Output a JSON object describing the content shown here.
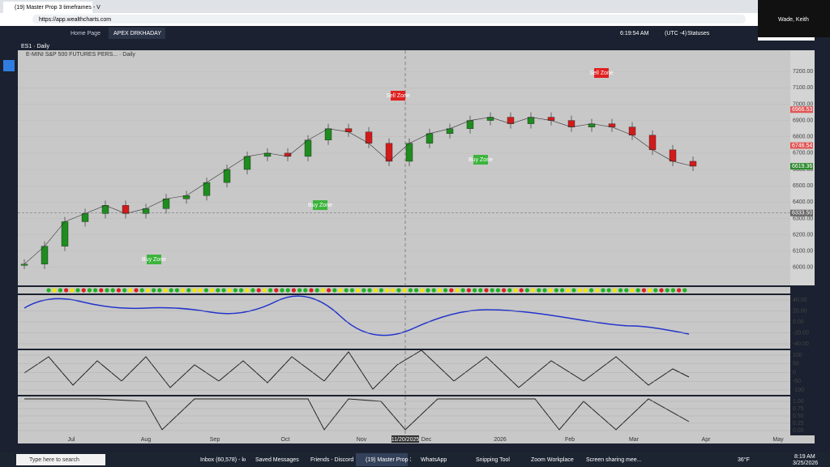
{
  "browser": {
    "tab_title": "(19) Master Prop 3 timeframes - V",
    "url": "https://app.wealthcharts.com"
  },
  "user": "Wade, Keith",
  "toolbar": {
    "tabs": [
      "Home Page",
      "APEX DRKHADAY"
    ],
    "time": "6:19:54 AM",
    "timezone": "(UTC -4)",
    "statuses": "Statuses"
  },
  "chart_data": {
    "type": "candle",
    "symbol": "ES1 · Daily",
    "title": "E-MINI S&P 500 FUTURES PERS... · Daily",
    "categories": [
      null,
      null,
      null,
      null,
      null,
      null,
      null,
      null,
      null,
      null,
      null,
      null,
      null,
      null,
      null,
      null,
      null,
      null,
      null,
      null,
      null,
      null,
      null,
      null,
      null,
      null,
      null,
      null,
      null,
      null,
      null,
      null,
      null,
      null
    ],
    "values": [
      6020,
      6130,
      6280,
      6330,
      6380,
      6330,
      6360,
      6420,
      6440,
      6520,
      6600,
      6680,
      6700,
      6680,
      6780,
      6850,
      6830,
      6760,
      6650,
      6760,
      6820,
      6850,
      6900,
      6920,
      6880,
      6920,
      6900,
      6860,
      6880,
      6860,
      6810,
      6720,
      6650,
      6620
    ],
    "up_color": "#1e8c1e",
    "down_color": "#d11b1b",
    "ylim": [
      5890,
      7330
    ],
    "yticks": [
      {
        "value": 7200,
        "label": "7200.00"
      },
      {
        "value": 7100,
        "label": "7100.00"
      },
      {
        "value": 7000,
        "label": "7000.00"
      },
      {
        "value": 6900,
        "label": "6900.00"
      },
      {
        "value": 6800,
        "label": "6800.00"
      },
      {
        "value": 6700,
        "label": "6700.00"
      },
      {
        "value": 6600,
        "label": "6600.00"
      },
      {
        "value": 6500,
        "label": "6500.00"
      },
      {
        "value": 6400,
        "label": "6400.00"
      },
      {
        "value": 6300,
        "label": "6300.00"
      },
      {
        "value": 6200,
        "label": "6200.00"
      },
      {
        "value": 6100,
        "label": "6100.00"
      },
      {
        "value": 6000,
        "label": "6000.00"
      }
    ],
    "price_markers": [
      {
        "value": 6966.53,
        "label": "6966.53",
        "color": "#e05555"
      },
      {
        "value": 6746.54,
        "label": "6746.54",
        "color": "#e05555"
      },
      {
        "value": 6619.36,
        "label": "6619.36",
        "color": "#2e8b2e"
      },
      {
        "value": 6333.5,
        "label": "6333.50",
        "color": "#666666"
      }
    ],
    "zones": [
      "Sell Zone",
      "Sell Zone",
      "Buy Zone",
      "Buy Zone",
      "Buy Zone"
    ],
    "x_labels": [
      "Jul",
      "Aug",
      "Sep",
      "Oct",
      "Nov",
      "Dec",
      "2026",
      "Feb",
      "Mar",
      "Apr",
      "May"
    ],
    "crosshair_date": "11/20/2025"
  },
  "panels": [
    {
      "labels": [
        "40.00",
        "20.00",
        "0.00",
        "-20.00",
        "-40.00"
      ]
    },
    {
      "labels": [
        "100",
        "50",
        "0",
        "-50",
        "-100"
      ]
    },
    {
      "labels": [
        "1.00",
        "0.75",
        "0.50",
        "0.25",
        "0.00"
      ]
    }
  ],
  "taskbar": {
    "search": "Type here to search",
    "apps": [
      "Inbox (60,578) - kei...",
      "Saved Messages - ...",
      "Friends - Discord",
      "(19) Master Prop 3 t...",
      "WhatsApp",
      "Snipping Tool",
      "Zoom Workplace",
      "Screen sharing mee..."
    ],
    "weather": "36°F",
    "time": "8:19 AM",
    "date": "3/25/2026"
  }
}
